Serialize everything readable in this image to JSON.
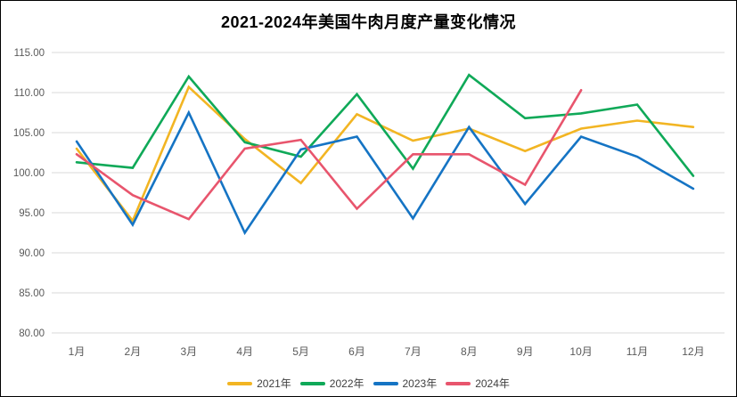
{
  "title": "2021-2024年美国牛肉月度产量变化情况",
  "chart_data": {
    "type": "line",
    "title": "2021-2024年美国牛肉月度产量变化情况",
    "categories": [
      "1月",
      "2月",
      "3月",
      "4月",
      "5月",
      "6月",
      "7月",
      "8月",
      "9月",
      "10月",
      "11月",
      "12月"
    ],
    "series": [
      {
        "name": "2021年",
        "color": "#F2B523",
        "values": [
          103.0,
          94.0,
          110.7,
          104.2,
          98.7,
          107.3,
          104.0,
          105.5,
          102.7,
          105.5,
          106.5,
          105.7
        ]
      },
      {
        "name": "2022年",
        "color": "#0FA958",
        "values": [
          101.3,
          100.6,
          112.0,
          103.8,
          102.0,
          109.8,
          100.5,
          112.2,
          106.8,
          107.4,
          108.5,
          99.6
        ]
      },
      {
        "name": "2023年",
        "color": "#1574C4",
        "values": [
          103.9,
          93.5,
          107.5,
          92.5,
          102.9,
          104.5,
          94.3,
          105.7,
          96.1,
          104.5,
          102.0,
          98.0
        ]
      },
      {
        "name": "2024年",
        "color": "#E8556D",
        "values": [
          102.3,
          97.2,
          94.2,
          103.0,
          104.1,
          95.5,
          102.3,
          102.3,
          98.5,
          110.3,
          null,
          null
        ]
      }
    ],
    "ylim": [
      80,
      115
    ],
    "ytick_step": 5,
    "ytick_labels": [
      "80.00",
      "85.00",
      "90.00",
      "95.00",
      "100.00",
      "105.00",
      "110.00",
      "115.00"
    ],
    "xlabel": "",
    "ylabel": "",
    "grid": true,
    "legend_position": "bottom",
    "gridline_color": "#D9D9D9",
    "axis_label_color": "#595959"
  }
}
